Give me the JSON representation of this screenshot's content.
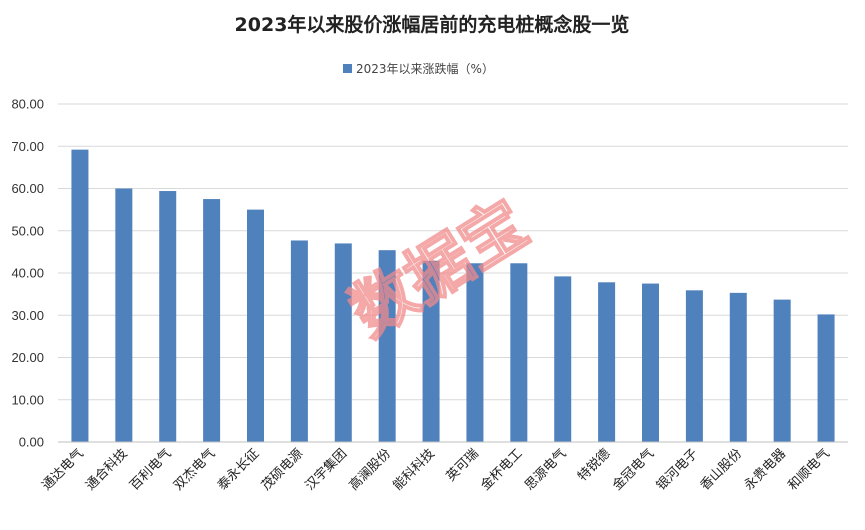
{
  "chart_data": {
    "type": "bar",
    "title": "2023年以来股价涨幅居前的充电桩概念股一览",
    "legend_position": "top-center",
    "grid": true,
    "ylim": [
      0,
      80
    ],
    "yticks": [
      "0.00",
      "10.00",
      "20.00",
      "30.00",
      "40.00",
      "50.00",
      "60.00",
      "70.00",
      "80.00"
    ],
    "series": [
      {
        "name": "2023年以来涨跌幅（%）",
        "color": "#4f81bd",
        "values": [
          69.2,
          60.0,
          59.4,
          57.5,
          55.0,
          47.7,
          47.0,
          45.4,
          42.9,
          42.3,
          42.3,
          39.2,
          37.8,
          37.5,
          35.9,
          35.3,
          33.7,
          30.2
        ]
      }
    ],
    "categories": [
      "通达电气",
      "通合科技",
      "百利电气",
      "双杰电气",
      "泰永长征",
      "茂硕电源",
      "汉宇集团",
      "高澜股份",
      "能科科技",
      "英可瑞",
      "金杯电工",
      "思源电气",
      "特锐德",
      "金冠电气",
      "银河电子",
      "香山股份",
      "永贵电器",
      "和顺电气"
    ],
    "watermark": "数据宝"
  }
}
